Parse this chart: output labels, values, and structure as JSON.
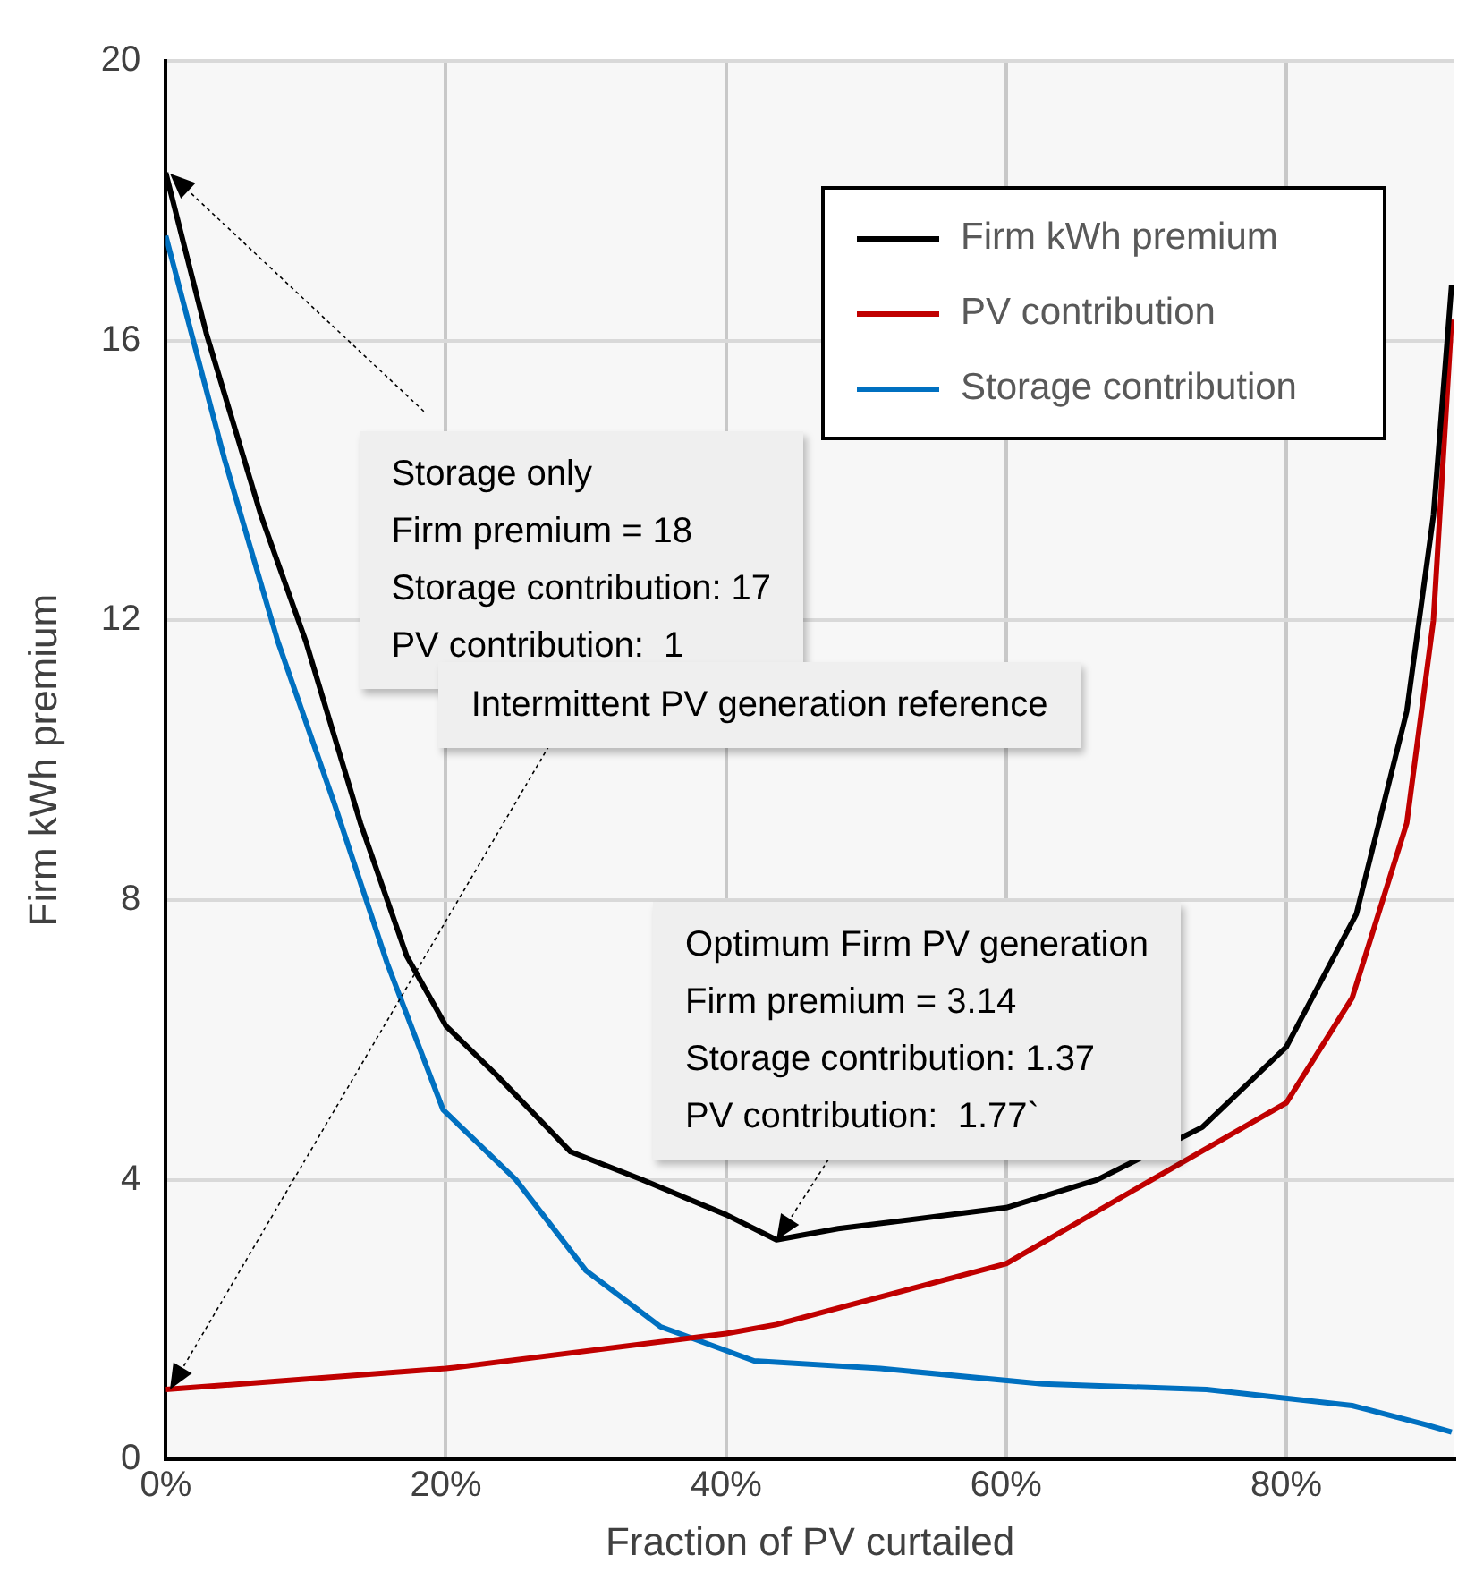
{
  "chart_data": {
    "type": "line",
    "xlabel": "Fraction of PV curtailed",
    "ylabel": "Firm kWh premium",
    "xlim": [
      0,
      92
    ],
    "xticks": [
      {
        "value": 0,
        "label": "0%"
      },
      {
        "value": 20,
        "label": "20%"
      },
      {
        "value": 40,
        "label": "40%"
      },
      {
        "value": 60,
        "label": "60%"
      },
      {
        "value": 80,
        "label": "80%"
      }
    ],
    "ylim": [
      0,
      20
    ],
    "yticks": [
      0,
      4,
      8,
      12,
      16,
      20
    ],
    "grid": true,
    "legend": "top right",
    "marker": "none",
    "line_style": "solid",
    "series": [
      {
        "name": "Firm kWh premium",
        "color": "#000000",
        "x": [
          0,
          2.9,
          6.8,
          10,
          13.9,
          17.2,
          20,
          23.6,
          28.9,
          34,
          40,
          43.6,
          48,
          60,
          66.5,
          74,
          80,
          85,
          88.6,
          90.5,
          91.8
        ],
        "values": [
          18.4,
          16.1,
          13.5,
          11.7,
          9.1,
          7.2,
          6.2,
          5.5,
          4.4,
          4,
          3.5,
          3.14,
          3.3,
          3.6,
          4,
          4.75,
          5.9,
          7.8,
          10.7,
          13.5,
          16.8
        ]
      },
      {
        "name": "PV contribution",
        "color": "#c00000",
        "x": [
          0,
          20,
          40,
          43.6,
          60,
          70.4,
          80,
          84.7,
          88.6,
          90.5,
          91.8
        ],
        "values": [
          1,
          1.3,
          1.8,
          1.93,
          2.8,
          4,
          5.1,
          6.6,
          9.1,
          12,
          16.3
        ]
      },
      {
        "name": "Storage contribution",
        "color": "#0070c0",
        "x": [
          0,
          4.2,
          8,
          12,
          15.8,
          19.8,
          25,
          30,
          35.3,
          42,
          51,
          62.6,
          74.3,
          84.7,
          89.9,
          91.8
        ],
        "values": [
          17.5,
          14.3,
          11.7,
          9.4,
          7.1,
          5,
          4,
          2.7,
          1.9,
          1.41,
          1.3,
          1.08,
          1,
          0.77,
          0.5,
          0.39
        ]
      }
    ],
    "annotations": [
      "Storage only\nFirm premium = 18\nStorage contribution: 17\nPV contribution:  1",
      "Intermittent PV generation reference",
      {
        "text": "Optimum Firm PV generation\nFirm premium = 3.14\nStorage contribution: 1.37\nPV contribution:  1.77`",
        "x": 43.6,
        "y": 3.14
      }
    ]
  }
}
